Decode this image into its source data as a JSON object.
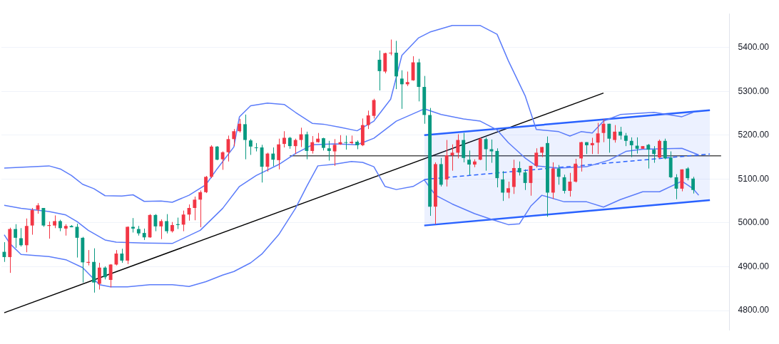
{
  "chart_data": {
    "type": "candlestick",
    "categories": [
      null,
      null,
      null,
      null,
      null,
      null,
      null,
      null,
      null,
      null,
      null,
      null,
      null,
      null,
      null,
      null,
      null,
      null,
      null,
      null,
      null,
      null,
      null,
      null,
      null,
      null,
      null,
      null,
      null,
      null,
      null,
      null,
      null,
      null,
      null,
      null,
      null,
      null,
      null,
      null,
      null,
      null,
      null,
      null,
      null,
      null,
      null,
      null,
      null,
      null,
      null,
      null,
      null,
      null,
      null,
      null,
      null,
      null,
      null,
      null,
      null,
      null,
      null,
      null,
      null,
      null,
      null,
      null,
      null,
      null,
      null,
      null,
      null,
      null,
      null,
      null,
      null,
      null,
      null,
      null,
      null,
      null,
      null,
      null,
      null,
      null,
      null,
      null,
      null,
      null,
      null,
      null,
      null,
      null,
      null,
      null,
      null,
      null,
      null,
      null,
      null,
      null,
      null,
      null,
      null,
      null,
      null,
      null,
      null,
      null,
      null,
      null,
      null,
      null,
      null,
      null,
      null,
      null,
      null,
      null,
      null,
      null,
      null,
      null,
      null,
      null,
      null,
      null,
      null,
      null
    ],
    "ohlc": [
      [
        4934,
        4956,
        4911,
        4922
      ],
      [
        4922,
        4989,
        4886,
        4986
      ],
      [
        4986,
        4997,
        4943,
        4966
      ],
      [
        4965,
        4988,
        4946,
        4949
      ],
      [
        4949,
        5010,
        4933,
        4993
      ],
      [
        4994,
        5034,
        4973,
        5029
      ],
      [
        5030,
        5045,
        5021,
        5040
      ],
      [
        5034,
        5034,
        4991,
        4994
      ],
      [
        4993,
        5003,
        4964,
        4995
      ],
      [
        4994,
        5017,
        4988,
        5004
      ],
      [
        5004,
        5007,
        4981,
        4988
      ],
      [
        4987,
        4997,
        4971,
        4993
      ],
      [
        4993,
        4995,
        4990,
        4990
      ],
      [
        4991,
        4998,
        4921,
        4966
      ],
      [
        4966,
        4968,
        4864,
        4910
      ],
      [
        4909,
        4938,
        4903,
        4911
      ],
      [
        4911,
        4942,
        4841,
        4864
      ],
      [
        4861,
        4909,
        4848,
        4898
      ],
      [
        4898,
        4901,
        4871,
        4876
      ],
      [
        4870,
        4906,
        4853,
        4905
      ],
      [
        4905,
        4938,
        4903,
        4930
      ],
      [
        4930,
        4941,
        4909,
        4914
      ],
      [
        4914,
        4992,
        4906,
        4991
      ],
      [
        4991,
        5011,
        4978,
        4987
      ],
      [
        4986,
        4993,
        4971,
        4976
      ],
      [
        4977,
        4987,
        4961,
        4967
      ],
      [
        4967,
        5020,
        4966,
        5018
      ],
      [
        5018,
        5020,
        4981,
        4992
      ],
      [
        4992,
        5008,
        4963,
        5004
      ],
      [
        5004,
        5020,
        4976,
        4981
      ],
      [
        4981,
        5002,
        4978,
        4995
      ],
      [
        4997,
        5012,
        4986,
        4995
      ],
      [
        4996,
        5028,
        4981,
        5019
      ],
      [
        5019,
        5042,
        5005,
        5034
      ],
      [
        5034,
        5060,
        5006,
        5053
      ],
      [
        5053,
        5074,
        4990,
        5070
      ],
      [
        5070,
        5107,
        5068,
        5105
      ],
      [
        5105,
        5177,
        5102,
        5174
      ],
      [
        5174,
        5175,
        5143,
        5144
      ],
      [
        5145,
        5163,
        5121,
        5161
      ],
      [
        5161,
        5199,
        5140,
        5191
      ],
      [
        5191,
        5214,
        5175,
        5209
      ],
      [
        5209,
        5237,
        5206,
        5226
      ],
      [
        5225,
        5247,
        5145,
        5189
      ],
      [
        5188,
        5191,
        5155,
        5174
      ],
      [
        5172,
        5182,
        5163,
        5171
      ],
      [
        5172,
        5178,
        5092,
        5128
      ],
      [
        5128,
        5160,
        5117,
        5158
      ],
      [
        5158,
        5172,
        5129,
        5144
      ],
      [
        5143,
        5192,
        5122,
        5179
      ],
      [
        5180,
        5209,
        5172,
        5194
      ],
      [
        5194,
        5196,
        5169,
        5175
      ],
      [
        5175,
        5192,
        5157,
        5189
      ],
      [
        5189,
        5217,
        5173,
        5202
      ],
      [
        5202,
        5208,
        5145,
        5164
      ],
      [
        5164,
        5198,
        5158,
        5184
      ],
      [
        5184,
        5205,
        5183,
        5192
      ],
      [
        5193,
        5194,
        5165,
        5171
      ],
      [
        5170,
        5187,
        5142,
        5164
      ],
      [
        5163,
        5191,
        5130,
        5178
      ],
      [
        5179,
        5200,
        5178,
        5184
      ],
      [
        5184,
        5199,
        5167,
        5183
      ],
      [
        5182,
        5199,
        5179,
        5185
      ],
      [
        5185,
        5188,
        5168,
        5177
      ],
      [
        5177,
        5238,
        5175,
        5223
      ],
      [
        5223,
        5256,
        5214,
        5245
      ],
      [
        5244,
        5283,
        5238,
        5280
      ],
      [
        5372,
        5393,
        5302,
        5346
      ],
      [
        5345,
        5388,
        5341,
        5387
      ],
      [
        5387,
        5418,
        5382,
        5388
      ],
      [
        5388,
        5415,
        5305,
        5334
      ],
      [
        5329,
        5348,
        5260,
        5316
      ],
      [
        5316,
        5345,
        5312,
        5321
      ],
      [
        5325,
        5380,
        5324,
        5366
      ],
      [
        5366,
        5374,
        5277,
        5310
      ],
      [
        5310,
        5335,
        5226,
        5246
      ],
      [
        5246,
        5262,
        5016,
        5037
      ],
      [
        5037,
        5138,
        4997,
        5134
      ],
      [
        5134,
        5148,
        5083,
        5087
      ],
      [
        5099,
        5189,
        5083,
        5154
      ],
      [
        5154,
        5179,
        5119,
        5160
      ],
      [
        5160,
        5202,
        5147,
        5189
      ],
      [
        5189,
        5205,
        5138,
        5148
      ],
      [
        5144,
        5165,
        5109,
        5133
      ],
      [
        5133,
        5145,
        5127,
        5140
      ],
      [
        5144,
        5195,
        5143,
        5192
      ],
      [
        5191,
        5195,
        5119,
        5168
      ],
      [
        5168,
        5190,
        5137,
        5163
      ],
      [
        5164,
        5170,
        5081,
        5102
      ],
      [
        5099,
        5118,
        5050,
        5069
      ],
      [
        5069,
        5094,
        5056,
        5079
      ],
      [
        5082,
        5144,
        5066,
        5125
      ],
      [
        5125,
        5140,
        5108,
        5115
      ],
      [
        5115,
        5122,
        5075,
        5091
      ],
      [
        5091,
        5130,
        5062,
        5130
      ],
      [
        5130,
        5170,
        5126,
        5160
      ],
      [
        5160,
        5173,
        5150,
        5173
      ],
      [
        5182,
        5197,
        5014,
        5069
      ],
      [
        5069,
        5138,
        5055,
        5124
      ],
      [
        5124,
        5132,
        5087,
        5105
      ],
      [
        5104,
        5110,
        5067,
        5073
      ],
      [
        5073,
        5114,
        5060,
        5094
      ],
      [
        5094,
        5146,
        5092,
        5135
      ],
      [
        5147,
        5185,
        5117,
        5184
      ],
      [
        5184,
        5184,
        5157,
        5177
      ],
      [
        5177,
        5194,
        5157,
        5182
      ],
      [
        5183,
        5228,
        5157,
        5204
      ],
      [
        5205,
        5237,
        5184,
        5226
      ],
      [
        5226,
        5226,
        5160,
        5192
      ],
      [
        5189,
        5223,
        5183,
        5208
      ],
      [
        5208,
        5219,
        5190,
        5199
      ],
      [
        5199,
        5205,
        5175,
        5187
      ],
      [
        5187,
        5195,
        5150,
        5177
      ],
      [
        5176,
        5195,
        5158,
        5169
      ],
      [
        5169,
        5175,
        5169,
        5175
      ],
      [
        5178,
        5180,
        5124,
        5167
      ],
      [
        5167,
        5175,
        5137,
        5157
      ],
      [
        5149,
        5190,
        5147,
        5187
      ],
      [
        5187,
        5192,
        5145,
        5147
      ],
      [
        5149,
        5163,
        5102,
        5104
      ],
      [
        5104,
        5111,
        5054,
        5078
      ],
      [
        5078,
        5122,
        5072,
        5122
      ],
      [
        5124,
        5127,
        5097,
        5102
      ],
      [
        5101,
        5105,
        5067,
        5075
      ],
      null,
      null,
      null,
      null,
      null,
      null
    ],
    "colors": [
      "#089981",
      "#f23645",
      "#089981",
      "#089981",
      "#f23645",
      "#f23645",
      "#f23645",
      "#089981",
      "#f23645",
      "#f23645",
      "#089981",
      "#f23645",
      "#089981",
      "#089981",
      "#089981",
      "#f23645",
      "#089981",
      "#f23645",
      "#089981",
      "#f23645",
      "#f23645",
      "#089981",
      "#f23645",
      "#089981",
      "#089981",
      "#089981",
      "#f23645",
      "#089981",
      "#f23645",
      "#089981",
      "#f23645",
      "#089981",
      "#f23645",
      "#f23645",
      "#f23645",
      "#f23645",
      "#f23645",
      "#f23645",
      "#089981",
      "#f23645",
      "#f23645",
      "#f23645",
      "#f23645",
      "#089981",
      "#089981",
      "#089981",
      "#089981",
      "#f23645",
      "#089981",
      "#f23645",
      "#f23645",
      "#089981",
      "#f23645",
      "#f23645",
      "#089981",
      "#f23645",
      "#f23645",
      "#089981",
      "#089981",
      "#f23645",
      "#f23645",
      "#089981",
      "#f23645",
      "#089981",
      "#f23645",
      "#f23645",
      "#f23645",
      "#089981",
      "#f23645",
      "#f23645",
      "#089981",
      "#089981",
      "#f23645",
      "#f23645",
      "#089981",
      "#089981",
      "#089981",
      "#f23645",
      "#089981",
      "#f23645",
      "#f23645",
      "#f23645",
      "#089981",
      "#089981",
      "#f23645",
      "#f23645",
      "#089981",
      "#089981",
      "#089981",
      "#089981",
      "#f23645",
      "#f23645",
      "#089981",
      "#089981",
      "#f23645",
      "#f23645",
      "#f23645",
      "#089981",
      "#f23645",
      "#089981",
      "#089981",
      "#f23645",
      "#f23645",
      "#f23645",
      "#089981",
      "#f23645",
      "#f23645",
      "#f23645",
      "#089981",
      "#f23645",
      "#089981",
      "#089981",
      "#089981",
      "#089981",
      "#f23645",
      "#089981",
      "#089981",
      "#f23645",
      "#089981",
      "#089981",
      "#089981",
      "#f23645",
      "#089981",
      "#089981",
      null,
      null,
      null,
      null,
      null,
      null
    ],
    "series": [
      {
        "type": "line",
        "color": "#5b7cfa",
        "values": [
          5125,
          null,
          null,
          null,
          null,
          null,
          null,
          null,
          5130,
          null,
          5123,
          null,
          5108,
          null,
          5088,
          null,
          5078,
          null,
          5062,
          null,
          null,
          5061,
          null,
          5064,
          null,
          5049,
          null,
          null,
          5050,
          null,
          5047,
          null,
          null,
          5063,
          null,
          null,
          5087,
          null,
          5123,
          null,
          null,
          5173,
          5242,
          null,
          5267,
          null,
          null,
          5273,
          null,
          null,
          5270,
          null,
          5252,
          null,
          null,
          5227,
          null,
          5225,
          null,
          null,
          5218,
          null,
          null,
          5210,
          null,
          null,
          5232,
          null,
          null,
          5282,
          null,
          5382,
          null,
          null,
          5422,
          null,
          5435,
          null,
          null,
          null,
          5450,
          null,
          null,
          null,
          null,
          5450,
          null,
          null,
          5430,
          null,
          5370,
          null,
          null,
          5290,
          null,
          5213,
          null,
          null,
          null,
          5208,
          null,
          5198,
          null,
          5208,
          null,
          5205,
          null,
          5232,
          null,
          null,
          5247,
          null,
          null,
          null,
          null,
          null,
          5252,
          null,
          null,
          null,
          null,
          5242,
          null,
          5252,
          null,
          null,
          null,
          null,
          null,
          null
        ]
      },
      {
        "type": "line",
        "color": "#5b7cfa",
        "values": [
          5040,
          null,
          null,
          5033,
          null,
          null,
          null,
          null,
          5026,
          null,
          null,
          5018,
          null,
          5003,
          null,
          4983,
          null,
          null,
          4961,
          null,
          4956,
          null,
          null,
          null,
          null,
          4954,
          null,
          null,
          null,
          null,
          4953,
          null,
          null,
          null,
          null,
          4983,
          null,
          null,
          null,
          5033,
          null,
          null,
          5083,
          null,
          null,
          5108,
          null,
          null,
          null,
          5133,
          null,
          null,
          5158,
          null,
          null,
          5178,
          null,
          null,
          null,
          5180,
          null,
          null,
          null,
          5178,
          null,
          null,
          5193,
          null,
          null,
          null,
          5232,
          null,
          null,
          null,
          null,
          5260,
          null,
          null,
          5247,
          null,
          null,
          null,
          5237,
          null,
          null,
          5232,
          null,
          null,
          5212,
          null,
          5183,
          null,
          null,
          5148,
          null,
          5130,
          null,
          null,
          null,
          5125,
          null,
          null,
          null,
          null,
          5128,
          null,
          null,
          null,
          5143,
          null,
          null,
          5163,
          null,
          null,
          5168,
          null,
          null,
          null,
          null,
          null,
          null,
          5170,
          null,
          null,
          5155,
          null,
          null,
          null,
          null,
          null
        ]
      },
      {
        "type": "line",
        "color": "#5b7cfa",
        "values": [
          4973,
          4953,
          null,
          4928,
          null,
          null,
          null,
          null,
          4923,
          null,
          null,
          4916,
          null,
          null,
          4898,
          null,
          null,
          4859,
          null,
          4854,
          null,
          null,
          4854,
          null,
          null,
          null,
          4859,
          null,
          null,
          null,
          4859,
          null,
          null,
          4855,
          null,
          null,
          4866,
          null,
          null,
          4881,
          null,
          4889,
          null,
          null,
          4909,
          null,
          4929,
          null,
          null,
          4973,
          null,
          null,
          5033,
          null,
          5083,
          null,
          5130,
          null,
          null,
          5134,
          null,
          null,
          5140,
          null,
          5138,
          null,
          5128,
          null,
          5083,
          null,
          5076,
          null,
          null,
          5083,
          null,
          5098,
          null,
          5063,
          null,
          null,
          5043,
          null,
          null,
          null,
          5021,
          null,
          null,
          5008,
          null,
          null,
          4996,
          null,
          4998,
          null,
          5038,
          null,
          5063,
          null,
          null,
          null,
          5048,
          null,
          null,
          null,
          5048,
          null,
          null,
          5036,
          null,
          null,
          5053,
          null,
          null,
          null,
          5071,
          null,
          null,
          5071,
          null,
          null,
          null,
          5095,
          null,
          5078,
          5063,
          null,
          null,
          null,
          null,
          null
        ]
      },
      {
        "type": "line",
        "color": "#2962ff",
        "line_style": "dashed",
        "values": [
          null,
          null,
          null,
          null,
          null,
          null,
          null,
          null,
          null,
          null,
          null,
          null,
          null,
          null,
          null,
          null,
          null,
          null,
          null,
          null,
          null,
          null,
          null,
          null,
          null,
          null,
          null,
          null,
          null,
          null,
          null,
          null,
          null,
          null,
          null,
          null,
          null,
          null,
          null,
          null,
          null,
          null,
          null,
          null,
          null,
          null,
          null,
          null,
          null,
          null,
          null,
          null,
          null,
          null,
          null,
          null,
          null,
          null,
          null,
          null,
          null,
          null,
          null,
          null,
          null,
          null,
          null,
          null,
          null,
          null,
          null,
          null,
          null,
          null,
          null,
          5099,
          null,
          null,
          null,
          null,
          null,
          null,
          null,
          null,
          null,
          null,
          null,
          null,
          null,
          null,
          null,
          null,
          null,
          null,
          null,
          null,
          null,
          null,
          null,
          null,
          null,
          null,
          null,
          null,
          null,
          null,
          null,
          null,
          null,
          null,
          null,
          null,
          null,
          null,
          null,
          null,
          null,
          null,
          null,
          null,
          null,
          null,
          null,
          null,
          null,
          null,
          5157,
          null,
          null,
          null
        ],
        "lower": [
          null,
          null,
          null,
          null,
          null,
          null,
          null,
          null,
          null,
          null,
          null,
          null,
          null,
          null,
          null,
          null,
          null,
          null,
          null,
          null,
          null,
          null,
          null,
          null,
          null,
          null,
          null,
          null,
          null,
          null,
          null,
          null,
          null,
          null,
          null,
          null,
          null,
          null,
          null,
          null,
          null,
          null,
          null,
          null,
          null,
          null,
          null,
          null,
          null,
          null,
          null,
          null,
          null,
          null,
          null,
          null,
          null,
          null,
          null,
          null,
          null,
          null,
          null,
          null,
          null,
          null,
          null,
          null,
          null,
          null,
          null,
          null,
          null,
          null,
          null,
          4994,
          null,
          null,
          null,
          null,
          null,
          null,
          null,
          null,
          null,
          null,
          null,
          null,
          null,
          null,
          null,
          null,
          null,
          null,
          null,
          null,
          null,
          null,
          null,
          null,
          null,
          null,
          null,
          null,
          null,
          null,
          null,
          null,
          null,
          null,
          null,
          null,
          null,
          null,
          null,
          null,
          null,
          null,
          null,
          null,
          null,
          null,
          null,
          null,
          null,
          null,
          5052,
          null,
          null,
          null
        ],
        "upper": [
          null,
          null,
          null,
          null,
          null,
          null,
          null,
          null,
          null,
          null,
          null,
          null,
          null,
          null,
          null,
          null,
          null,
          null,
          null,
          null,
          null,
          null,
          null,
          null,
          null,
          null,
          null,
          null,
          null,
          null,
          null,
          null,
          null,
          null,
          null,
          null,
          null,
          null,
          null,
          null,
          null,
          null,
          null,
          null,
          null,
          null,
          null,
          null,
          null,
          null,
          null,
          null,
          null,
          null,
          null,
          null,
          null,
          null,
          null,
          null,
          null,
          null,
          null,
          null,
          null,
          null,
          null,
          null,
          null,
          null,
          null,
          null,
          null,
          null,
          null,
          5200,
          null,
          null,
          null,
          null,
          null,
          null,
          null,
          null,
          null,
          null,
          null,
          null,
          null,
          null,
          null,
          null,
          null,
          null,
          null,
          null,
          null,
          null,
          null,
          null,
          null,
          null,
          null,
          null,
          null,
          null,
          null,
          null,
          null,
          null,
          null,
          null,
          null,
          null,
          null,
          null,
          null,
          null,
          null,
          null,
          null,
          null,
          null,
          null,
          null,
          null,
          5257,
          null,
          null,
          null
        ]
      },
      {
        "type": "line",
        "color": "#2962ff",
        "values": [
          null,
          null,
          null,
          null,
          null,
          null,
          null,
          null,
          null,
          null,
          null,
          null,
          null,
          null,
          null,
          null,
          null,
          null,
          null,
          null,
          null,
          null,
          null,
          null,
          null,
          null,
          null,
          null,
          null,
          null,
          null,
          null,
          null,
          null,
          null,
          null,
          null,
          null,
          null,
          null,
          null,
          null,
          null,
          null,
          null,
          null,
          null,
          null,
          null,
          null,
          null,
          null,
          null,
          null,
          null,
          null,
          null,
          null,
          null,
          null,
          null,
          null,
          null,
          null,
          null,
          null,
          null,
          null,
          null,
          null,
          null,
          null,
          null,
          null,
          null,
          5200,
          null,
          null,
          null,
          null,
          null,
          null,
          null,
          null,
          null,
          null,
          null,
          null,
          null,
          null,
          null,
          null,
          null,
          null,
          null,
          null,
          null,
          null,
          null,
          null,
          null,
          null,
          null,
          null,
          null,
          null,
          null,
          null,
          null,
          null,
          null,
          null,
          null,
          null,
          null,
          null,
          null,
          null,
          null,
          null,
          null,
          null,
          null,
          null,
          null,
          null,
          5257,
          null,
          null,
          null
        ]
      },
      {
        "type": "line",
        "color": "#2962ff",
        "values": [
          null,
          null,
          null,
          null,
          null,
          null,
          null,
          null,
          null,
          null,
          null,
          null,
          null,
          null,
          null,
          null,
          null,
          null,
          null,
          null,
          null,
          null,
          null,
          null,
          null,
          null,
          null,
          null,
          null,
          null,
          null,
          null,
          null,
          null,
          null,
          null,
          null,
          null,
          null,
          null,
          null,
          null,
          null,
          null,
          null,
          null,
          null,
          null,
          null,
          null,
          null,
          null,
          null,
          null,
          null,
          null,
          null,
          null,
          null,
          null,
          null,
          null,
          null,
          null,
          null,
          null,
          null,
          null,
          null,
          null,
          null,
          null,
          null,
          null,
          null,
          4994,
          null,
          null,
          null,
          null,
          null,
          null,
          null,
          null,
          null,
          null,
          null,
          null,
          null,
          null,
          null,
          null,
          null,
          null,
          null,
          null,
          null,
          null,
          null,
          null,
          null,
          null,
          null,
          null,
          null,
          null,
          null,
          null,
          null,
          null,
          null,
          null,
          null,
          null,
          null,
          null,
          null,
          null,
          null,
          null,
          null,
          null,
          null,
          null,
          null,
          null,
          5052,
          null,
          null,
          null
        ]
      },
      {
        "type": "line",
        "color": "#000000",
        "values": [
          4795,
          null,
          null,
          null,
          null,
          null,
          null,
          null,
          null,
          null,
          null,
          null,
          null,
          null,
          null,
          null,
          null,
          null,
          null,
          null,
          null,
          null,
          null,
          null,
          null,
          null,
          null,
          null,
          null,
          null,
          null,
          null,
          null,
          null,
          null,
          null,
          null,
          null,
          null,
          null,
          null,
          null,
          null,
          null,
          null,
          null,
          null,
          null,
          null,
          null,
          null,
          null,
          null,
          null,
          null,
          null,
          null,
          null,
          null,
          null,
          null,
          null,
          null,
          null,
          null,
          null,
          null,
          null,
          null,
          null,
          null,
          null,
          null,
          null,
          null,
          null,
          null,
          null,
          null,
          null,
          null,
          null,
          null,
          null,
          null,
          null,
          null,
          null,
          null,
          null,
          null,
          null,
          null,
          null,
          null,
          null,
          null,
          null,
          null,
          null,
          null,
          null,
          null,
          null,
          null,
          null,
          null,
          5296,
          null,
          null,
          null,
          null,
          null,
          null,
          null,
          null,
          null,
          null,
          null,
          null,
          null,
          null,
          null,
          null,
          null,
          null,
          null,
          null,
          null,
          null
        ]
      },
      {
        "type": "line",
        "color": "#4d4d4d",
        "values": [
          null,
          null,
          null,
          null,
          null,
          null,
          null,
          null,
          null,
          null,
          null,
          null,
          null,
          null,
          null,
          null,
          null,
          null,
          null,
          null,
          null,
          null,
          null,
          null,
          null,
          null,
          null,
          null,
          null,
          null,
          null,
          null,
          null,
          null,
          null,
          null,
          null,
          null,
          null,
          null,
          null,
          null,
          null,
          null,
          null,
          null,
          null,
          null,
          null,
          null,
          null,
          5153,
          null,
          null,
          null,
          null,
          null,
          null,
          null,
          null,
          null,
          null,
          null,
          null,
          null,
          null,
          null,
          null,
          null,
          null,
          null,
          null,
          null,
          null,
          null,
          null,
          null,
          null,
          null,
          null,
          null,
          null,
          null,
          null,
          null,
          null,
          null,
          null,
          null,
          null,
          null,
          null,
          null,
          null,
          null,
          null,
          null,
          null,
          null,
          null,
          null,
          null,
          null,
          null,
          null,
          null,
          null,
          null,
          null,
          null,
          null,
          null,
          null,
          null,
          null,
          null,
          null,
          null,
          null,
          null,
          null,
          null,
          null,
          null,
          null,
          null,
          null,
          null,
          5153,
          null
        ]
      }
    ],
    "ylim": [
      4755,
      5477
    ],
    "yticks": [
      {
        "value": 4800,
        "label": "4800.00"
      },
      {
        "value": 4900,
        "label": "4900.00"
      },
      {
        "value": 5000,
        "label": "5000.00"
      },
      {
        "value": 5100,
        "label": "5100.00"
      },
      {
        "value": 5200,
        "label": "5200.00"
      },
      {
        "value": 5300,
        "label": "5300.00"
      },
      {
        "value": 5400,
        "label": "5400.00"
      }
    ],
    "grid": "y",
    "legend": false,
    "tick_labels": "y",
    "marker": "none"
  }
}
